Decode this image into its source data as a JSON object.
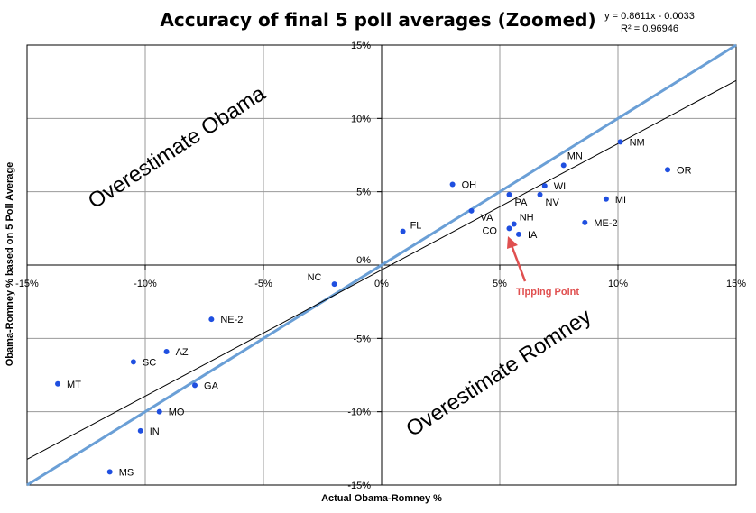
{
  "chart_data": {
    "type": "scatter",
    "title": "Accuracy of final 5 poll averages (Zoomed)",
    "xlabel": "Actual Obama-Romney %",
    "ylabel": "Obama-Romney % based on 5 Poll Average",
    "xlim": [
      -0.15,
      0.15
    ],
    "ylim": [
      -0.15,
      0.15
    ],
    "x_ticks": [
      -0.15,
      -0.1,
      -0.05,
      0,
      0.05,
      0.1,
      0.15
    ],
    "y_ticks": [
      -0.15,
      -0.1,
      -0.05,
      0,
      0.05,
      0.1,
      0.15
    ],
    "x_tick_labels": [
      "-15%",
      "-10%",
      "-5%",
      "0%",
      "5%",
      "10%",
      "15%"
    ],
    "y_tick_labels": [
      "-15%",
      "-10%",
      "-5%",
      "0%",
      "5%",
      "10%",
      "15%"
    ],
    "grid": true,
    "point_color": "#1f4fe0",
    "points": [
      {
        "label": "NM",
        "x": 0.101,
        "y": 0.084
      },
      {
        "label": "OR",
        "x": 0.121,
        "y": 0.065
      },
      {
        "label": "MN",
        "x": 0.077,
        "y": 0.068
      },
      {
        "label": "MI",
        "x": 0.095,
        "y": 0.045
      },
      {
        "label": "WI",
        "x": 0.069,
        "y": 0.054
      },
      {
        "label": "NV",
        "x": 0.067,
        "y": 0.048
      },
      {
        "label": "PA",
        "x": 0.054,
        "y": 0.048
      },
      {
        "label": "OH",
        "x": 0.03,
        "y": 0.055
      },
      {
        "label": "VA",
        "x": 0.038,
        "y": 0.037
      },
      {
        "label": "ME-2",
        "x": 0.086,
        "y": 0.029
      },
      {
        "label": "NH",
        "x": 0.056,
        "y": 0.028
      },
      {
        "label": "IA",
        "x": 0.058,
        "y": 0.021
      },
      {
        "label": "CO",
        "x": 0.054,
        "y": 0.025
      },
      {
        "label": "FL",
        "x": 0.009,
        "y": 0.023
      },
      {
        "label": "NC",
        "x": -0.02,
        "y": -0.013
      },
      {
        "label": "NE-2",
        "x": -0.072,
        "y": -0.037
      },
      {
        "label": "AZ",
        "x": -0.091,
        "y": -0.059
      },
      {
        "label": "SC",
        "x": -0.105,
        "y": -0.066
      },
      {
        "label": "GA",
        "x": -0.079,
        "y": -0.082
      },
      {
        "label": "MT",
        "x": -0.137,
        "y": -0.081
      },
      {
        "label": "MO",
        "x": -0.094,
        "y": -0.1
      },
      {
        "label": "IN",
        "x": -0.102,
        "y": -0.113
      },
      {
        "label": "MS",
        "x": -0.115,
        "y": -0.141
      }
    ],
    "reference_line": {
      "slope": 1,
      "intercept": 0,
      "color": "#6a9fd6"
    },
    "trendline": {
      "slope": 0.8611,
      "intercept": -0.0033,
      "color": "#000000"
    },
    "trendline_equation": "y = 0.8611x - 0.0033",
    "r_squared": "R² = 0.96946",
    "annotations": {
      "overestimate_obama": "Overestimate Obama",
      "overestimate_romney": "Overestimate Romney",
      "tipping_point": "Tipping Point",
      "tipping_point_color": "#e05050"
    }
  }
}
